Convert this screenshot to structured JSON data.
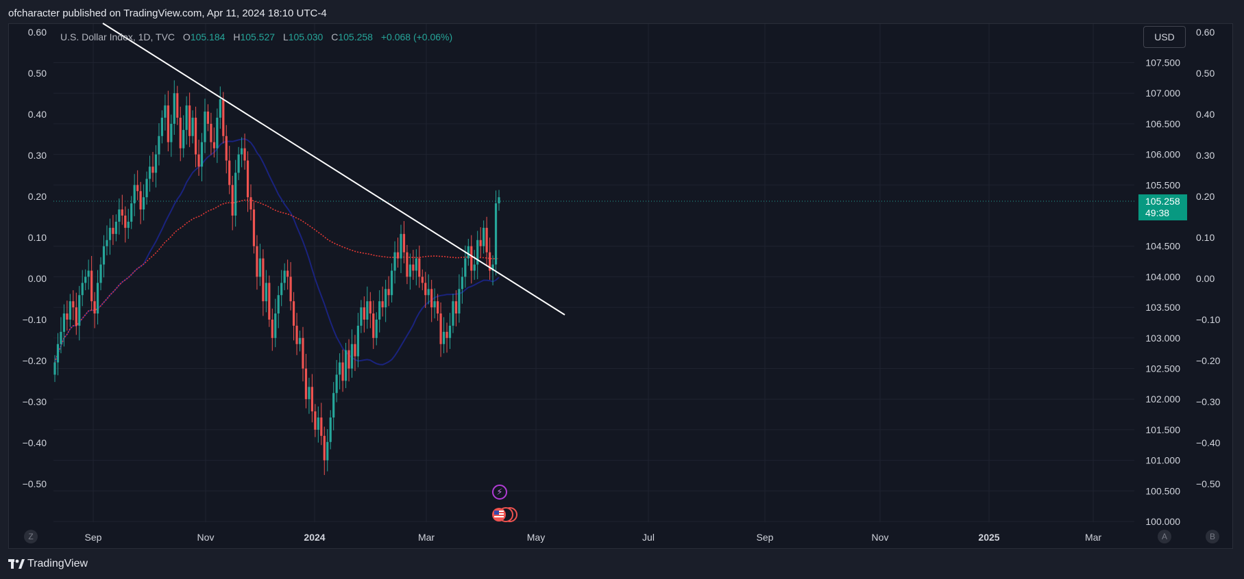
{
  "header": {
    "published": "ofcharacter published on TradingView.com, Apr 11, 2024 18:10 UTC-4"
  },
  "legend": {
    "symbol": "U.S. Dollar Index, 1D, TVC",
    "o_label": "O",
    "o_value": "105.184",
    "h_label": "H",
    "h_value": "105.527",
    "l_label": "L",
    "l_value": "105.030",
    "c_label": "C",
    "c_value": "105.258",
    "change": "+0.068 (+0.06%)"
  },
  "currency_button": "USD",
  "price_tag": {
    "price": "105.258",
    "countdown": "49:38"
  },
  "corner_buttons": {
    "zoom": "Z",
    "auto": "A",
    "log": "B"
  },
  "footer": {
    "brand": "TradingView"
  },
  "icons": {
    "event": "lightning-icon",
    "flags": "us-flag-icon",
    "logo": "tradingview-logo-icon"
  },
  "colors": {
    "background": "#131722",
    "up": "#26a69a",
    "down": "#ef5350",
    "ma_slow": "#e53935",
    "ma_fast": "#1a237e",
    "trendline": "#ffffff",
    "price_tag": "#089981"
  },
  "chart_data": {
    "type": "candlestick",
    "x_ticks": [
      "Sep",
      "Nov",
      "2024",
      "Mar",
      "May",
      "Jul",
      "Sep",
      "Nov",
      "2025",
      "Mar"
    ],
    "y_left_ticks": [
      "0.60",
      "0.50",
      "0.40",
      "0.30",
      "0.20",
      "0.10",
      "0.00",
      "−0.10",
      "−0.20",
      "−0.30",
      "−0.40",
      "−0.50"
    ],
    "y_right_ticks": [
      "0.60",
      "0.50",
      "0.40",
      "0.30",
      "0.20",
      "0.10",
      "0.00",
      "−0.10",
      "−0.20",
      "−0.30",
      "−0.40",
      "−0.50"
    ],
    "y_price_ticks": [
      "107.500",
      "107.000",
      "106.500",
      "106.000",
      "105.500",
      "104.500",
      "104.000",
      "103.500",
      "103.000",
      "102.500",
      "102.000",
      "101.500",
      "101.000",
      "100.500",
      "100.000"
    ],
    "price_range": [
      100.0,
      108.0
    ],
    "last_price": 105.258,
    "closes": [
      102.6,
      102.9,
      103.1,
      103.4,
      103.3,
      103.6,
      103.5,
      103.2,
      103.7,
      103.9,
      104.0,
      104.1,
      103.6,
      103.4,
      103.9,
      104.2,
      104.5,
      104.6,
      104.8,
      104.7,
      104.9,
      105.1,
      105.0,
      104.8,
      104.9,
      105.2,
      105.5,
      105.4,
      105.1,
      105.3,
      105.6,
      105.8,
      105.7,
      106.0,
      106.3,
      106.6,
      106.8,
      106.2,
      106.5,
      107.0,
      106.6,
      106.1,
      106.4,
      106.8,
      106.3,
      106.6,
      106.0,
      105.8,
      106.2,
      106.7,
      106.5,
      106.2,
      106.1,
      106.6,
      106.9,
      106.3,
      105.9,
      105.5,
      105.0,
      105.7,
      106.0,
      106.1,
      105.9,
      105.3,
      105.1,
      104.5,
      104.0,
      104.3,
      103.6,
      103.9,
      103.3,
      103.0,
      103.4,
      103.7,
      103.9,
      104.1,
      104.0,
      103.6,
      103.2,
      102.9,
      103.0,
      102.5,
      102.0,
      102.2,
      101.8,
      101.5,
      101.7,
      101.4,
      101.0,
      101.3,
      101.7,
      102.1,
      102.4,
      102.6,
      102.3,
      102.8,
      102.5,
      102.9,
      102.7,
      103.2,
      103.5,
      103.3,
      103.6,
      103.4,
      103.0,
      103.3,
      103.6,
      103.5,
      103.8,
      103.7,
      104.1,
      104.4,
      104.3,
      104.7,
      104.4,
      104.0,
      104.2,
      104.1,
      104.3,
      104.0,
      103.9,
      103.7,
      103.8,
      103.5,
      103.6,
      103.4,
      102.9,
      103.1,
      103.0,
      103.2,
      103.6,
      103.4,
      103.8,
      104.0,
      104.3,
      104.5,
      104.1,
      104.2,
      104.6,
      104.5,
      104.8,
      104.4,
      104.1,
      104.2,
      105.2,
      105.3
    ]
  }
}
